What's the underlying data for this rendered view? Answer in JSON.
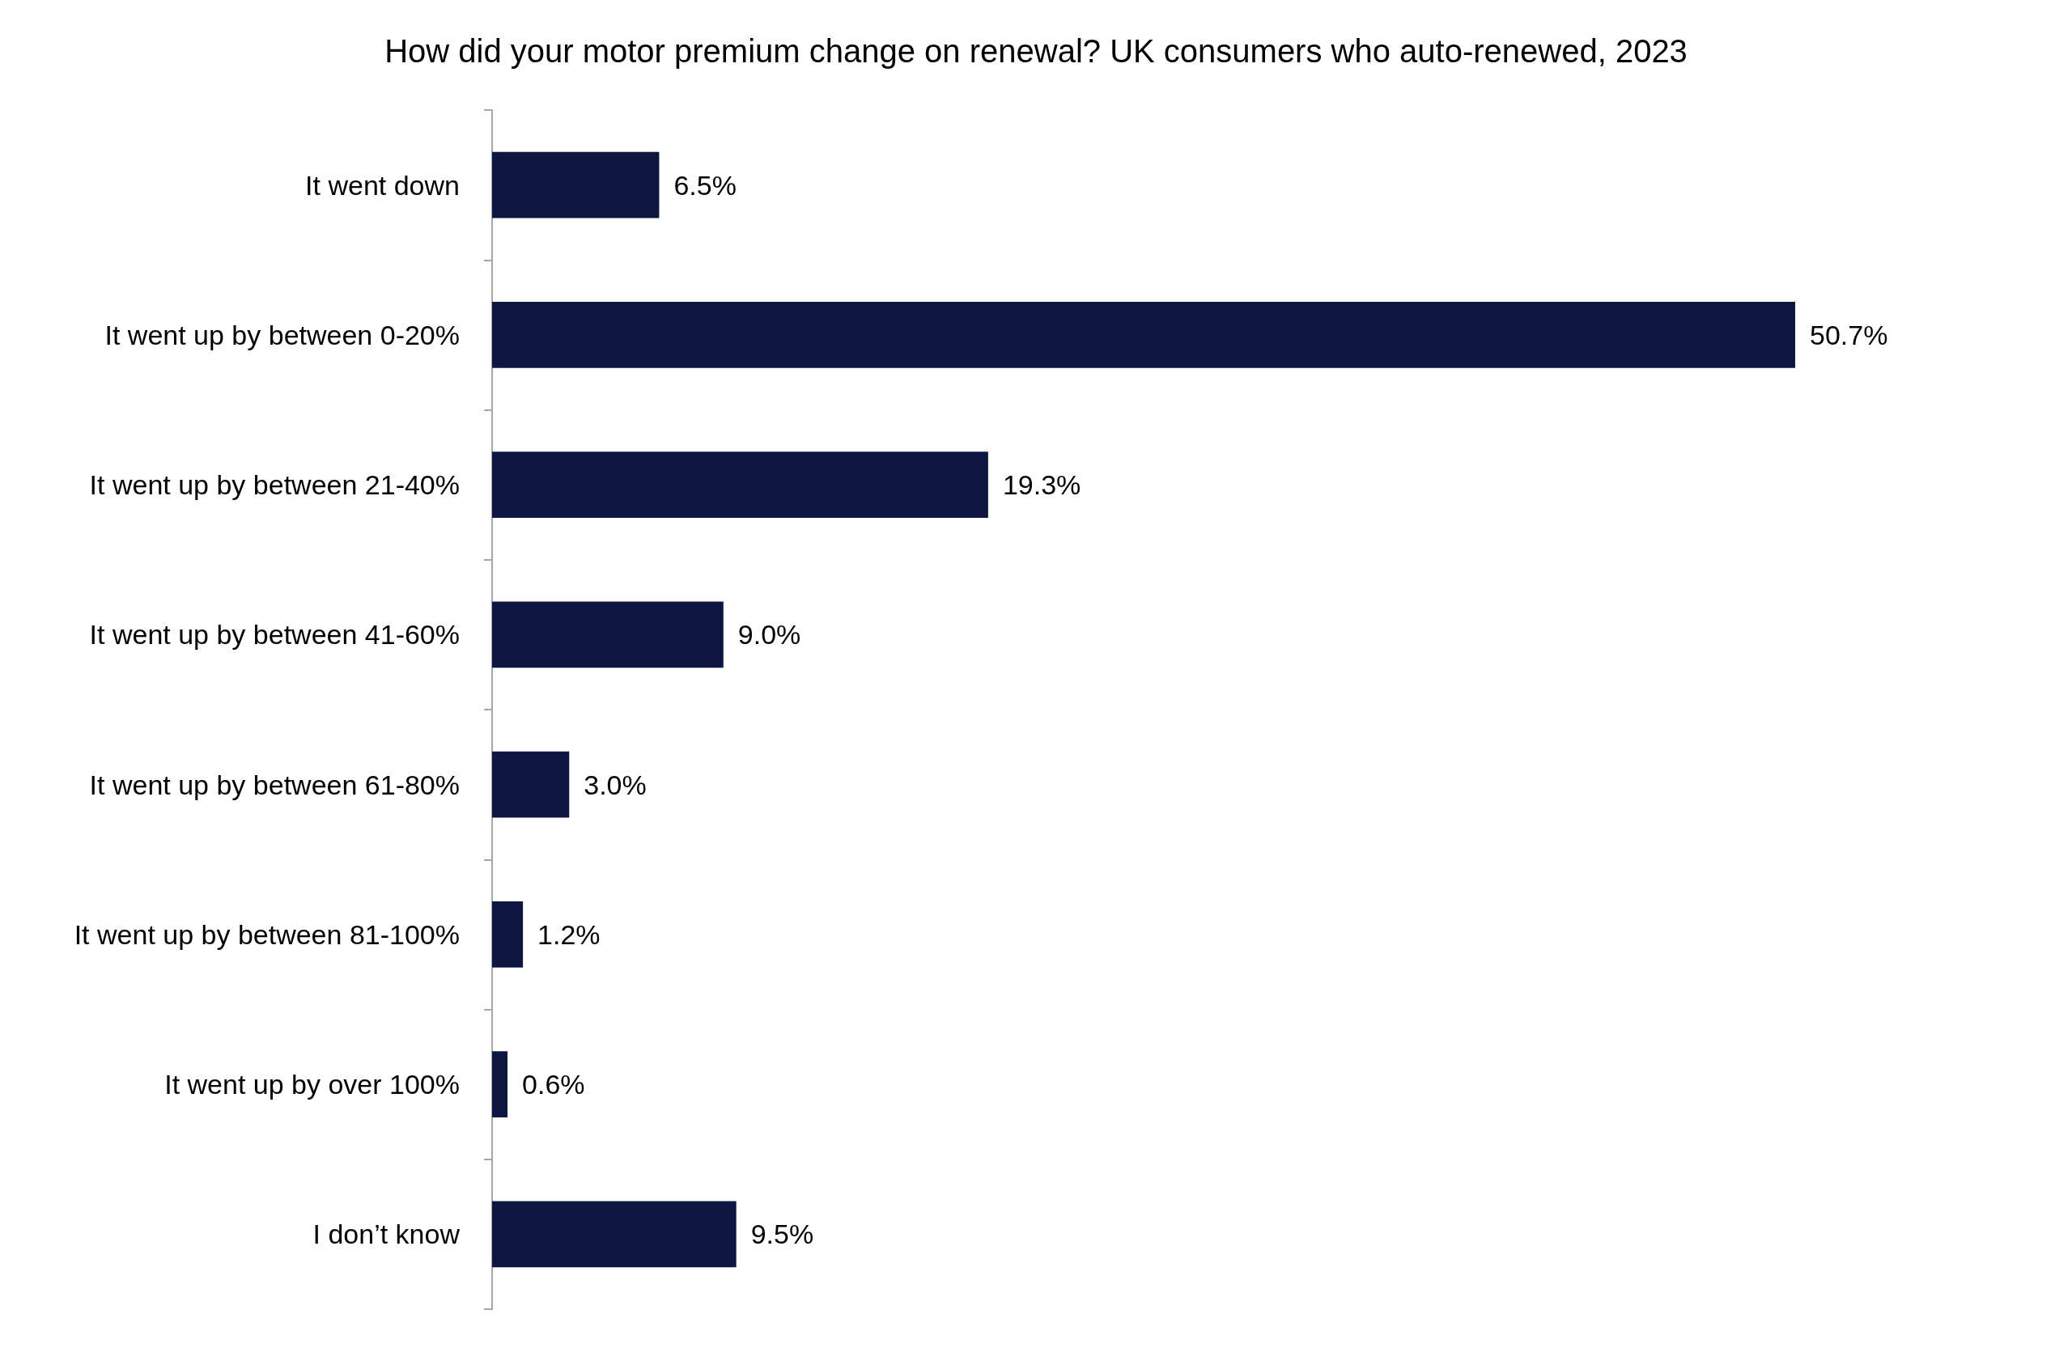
{
  "chart_data": {
    "type": "bar",
    "orientation": "horizontal",
    "tick_labels": "y",
    "title": "How did your motor premium change on renewal? UK consumers who auto-renewed, 2023",
    "categories": [
      "It went down",
      "It went up by between 0-20%",
      "It went up by between 21-40%",
      "It went up by between 41-60%",
      "It went up by between 61-80%",
      "It went up by between 81-100%",
      "It went up by over 100%",
      "I don’t know"
    ],
    "values": [
      6.5,
      50.7,
      19.3,
      9.0,
      3.0,
      1.2,
      0.6,
      9.5
    ],
    "value_labels": [
      "6.5%",
      "50.7%",
      "19.3%",
      "9.0%",
      "3.0%",
      "1.2%",
      "0.6%",
      "9.5%"
    ],
    "color": "#0e1740"
  }
}
